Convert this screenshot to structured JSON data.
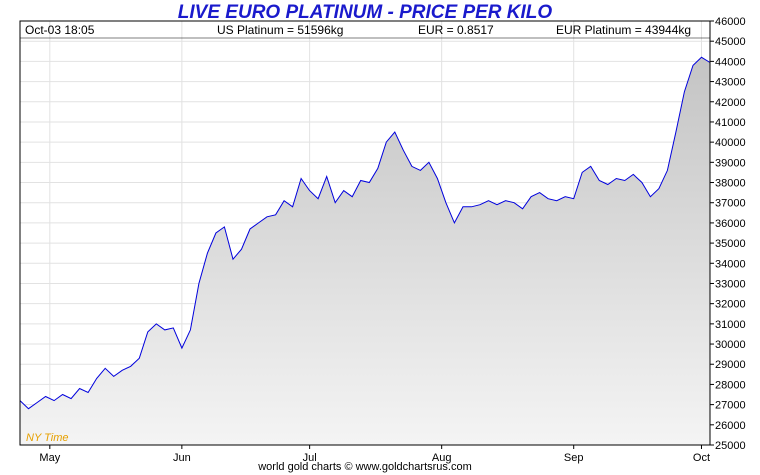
{
  "header": {
    "title": "LIVE EURO PLATINUM - PRICE PER KILO",
    "timestamp": "Oct-03  18:05",
    "us_platinum": "US Platinum = 51596kg",
    "eur_rate": "EUR = 0.8517",
    "eur_platinum": "EUR Platinum = 43944kg"
  },
  "footer": "world gold charts © www.goldchartsrus.com",
  "timezone_label": "NY Time",
  "colors": {
    "title": "#1a1acc",
    "line": "#0000dd",
    "fill_top": "#c4c4c4",
    "fill_bottom": "#f4f4f4",
    "timezone": "#e6a000"
  },
  "chart_data": {
    "type": "area",
    "title": "LIVE EURO PLATINUM - PRICE PER KILO",
    "xlabel": "",
    "ylabel": "",
    "ylim": [
      25000,
      46000
    ],
    "y_ticks": [
      25000,
      26000,
      27000,
      28000,
      29000,
      30000,
      31000,
      32000,
      33000,
      34000,
      35000,
      36000,
      37000,
      38000,
      39000,
      40000,
      41000,
      42000,
      43000,
      44000,
      45000,
      46000
    ],
    "x_range": [
      "Apr-24",
      "Oct-03"
    ],
    "x_ticks": [
      {
        "label": "May",
        "date": "May-01"
      },
      {
        "label": "Jun",
        "date": "Jun-01"
      },
      {
        "label": "Jul",
        "date": "Jul-01"
      },
      {
        "label": "Aug",
        "date": "Aug-01"
      },
      {
        "label": "Sep",
        "date": "Sep-01"
      },
      {
        "label": "Oct",
        "date": "Oct-01"
      }
    ],
    "grid": true,
    "legend": "none",
    "series": [
      {
        "x": [
          "Apr-24",
          "Apr-26",
          "Apr-28",
          "Apr-30",
          "May-02",
          "May-04",
          "May-06",
          "May-08",
          "May-10",
          "May-12",
          "May-14",
          "May-16",
          "May-18",
          "May-20",
          "May-22",
          "May-24",
          "May-26",
          "May-28",
          "May-30",
          "Jun-01",
          "Jun-03",
          "Jun-05",
          "Jun-07",
          "Jun-09",
          "Jun-11",
          "Jun-13",
          "Jun-15",
          "Jun-17",
          "Jun-19",
          "Jun-21",
          "Jun-23",
          "Jun-25",
          "Jun-27",
          "Jun-29",
          "Jul-01",
          "Jul-03",
          "Jul-05",
          "Jul-07",
          "Jul-09",
          "Jul-11",
          "Jul-13",
          "Jul-15",
          "Jul-17",
          "Jul-19",
          "Jul-21",
          "Jul-23",
          "Jul-25",
          "Jul-27",
          "Jul-29",
          "Jul-31",
          "Aug-02",
          "Aug-04",
          "Aug-06",
          "Aug-08",
          "Aug-10",
          "Aug-12",
          "Aug-14",
          "Aug-16",
          "Aug-18",
          "Aug-20",
          "Aug-22",
          "Aug-24",
          "Aug-26",
          "Aug-28",
          "Aug-30",
          "Sep-01",
          "Sep-03",
          "Sep-05",
          "Sep-07",
          "Sep-09",
          "Sep-11",
          "Sep-13",
          "Sep-15",
          "Sep-17",
          "Sep-19",
          "Sep-21",
          "Sep-23",
          "Sep-25",
          "Sep-27",
          "Sep-29",
          "Oct-01",
          "Oct-03"
        ],
        "values": [
          27200,
          26800,
          27100,
          27400,
          27200,
          27500,
          27300,
          27800,
          27600,
          28300,
          28800,
          28400,
          28700,
          28900,
          29300,
          30600,
          31000,
          30700,
          30800,
          29800,
          30700,
          33000,
          34500,
          35500,
          35800,
          34200,
          34700,
          35700,
          36000,
          36300,
          36400,
          37100,
          36800,
          38200,
          37600,
          37200,
          38300,
          37000,
          37600,
          37300,
          38100,
          38000,
          38700,
          40000,
          40500,
          39600,
          38800,
          38600,
          39000,
          38200,
          37000,
          36000,
          36800,
          36800,
          36900,
          37100,
          36900,
          37100,
          37000,
          36700,
          37300,
          37500,
          37200,
          37100,
          37300,
          37200,
          38500,
          38800,
          38100,
          37900,
          38200,
          38100,
          38400,
          38000,
          37300,
          37700,
          38600,
          40500,
          42500,
          43800,
          44200,
          43944
        ]
      }
    ]
  }
}
